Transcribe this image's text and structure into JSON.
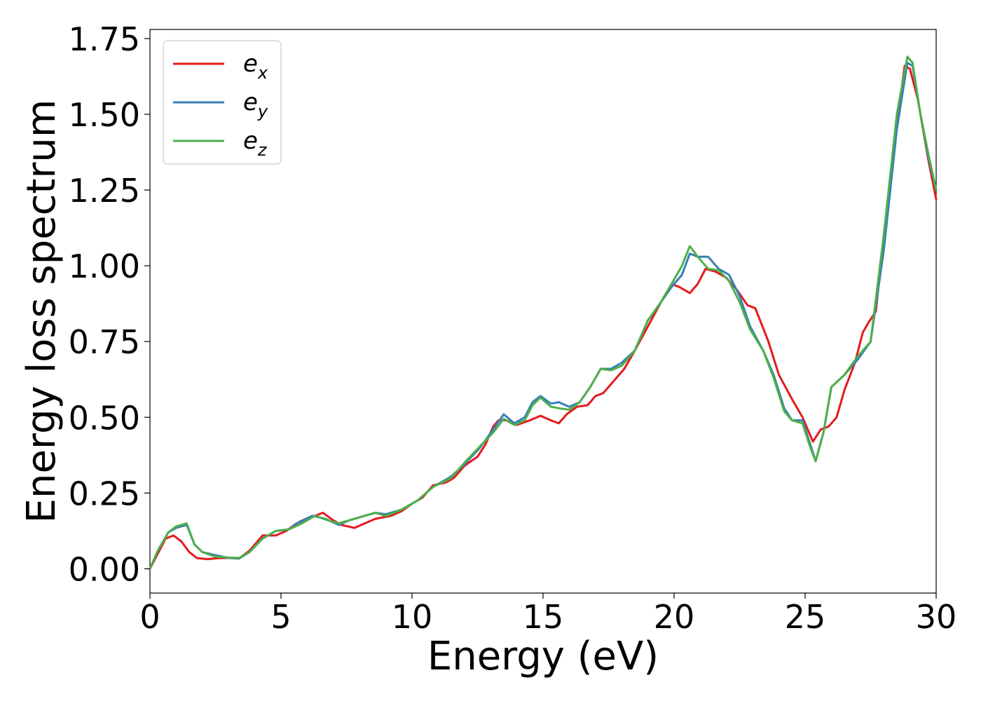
{
  "chart_data": {
    "type": "line",
    "title": "",
    "xlabel": "Energy (eV)",
    "ylabel": "Energy loss spectrum",
    "xlim": [
      0,
      30
    ],
    "ylim": [
      -0.08,
      1.78
    ],
    "x_ticks": [
      0,
      5,
      10,
      15,
      20,
      25,
      30
    ],
    "x_tick_labels": [
      "0",
      "5",
      "10",
      "15",
      "20",
      "25",
      "30"
    ],
    "y_ticks": [
      0.0,
      0.25,
      0.5,
      0.75,
      1.0,
      1.25,
      1.5,
      1.75
    ],
    "y_tick_labels": [
      "0.00",
      "0.25",
      "0.50",
      "0.75",
      "1.00",
      "1.25",
      "1.50",
      "1.75"
    ],
    "grid": false,
    "legend": {
      "position": "top-left",
      "entries": [
        {
          "base": "e",
          "sub": "x",
          "color": "#e41a1c"
        },
        {
          "base": "e",
          "sub": "y",
          "color": "#377eb8"
        },
        {
          "base": "e",
          "sub": "z",
          "color": "#4daf4a"
        }
      ]
    },
    "series": [
      {
        "name": "e_x",
        "color": "#e41a1c",
        "points": [
          [
            0,
            0.0
          ],
          [
            0.3,
            0.05
          ],
          [
            0.6,
            0.1
          ],
          [
            0.9,
            0.11
          ],
          [
            1.2,
            0.09
          ],
          [
            1.5,
            0.055
          ],
          [
            1.8,
            0.035
          ],
          [
            2.2,
            0.032
          ],
          [
            2.6,
            0.035
          ],
          [
            3.0,
            0.036
          ],
          [
            3.4,
            0.034
          ],
          [
            3.8,
            0.06
          ],
          [
            4.3,
            0.11
          ],
          [
            4.8,
            0.11
          ],
          [
            5.2,
            0.125
          ],
          [
            5.6,
            0.15
          ],
          [
            6.0,
            0.165
          ],
          [
            6.6,
            0.185
          ],
          [
            7.0,
            0.16
          ],
          [
            7.3,
            0.145
          ],
          [
            7.8,
            0.135
          ],
          [
            8.2,
            0.15
          ],
          [
            8.6,
            0.165
          ],
          [
            9.2,
            0.175
          ],
          [
            9.6,
            0.19
          ],
          [
            10.0,
            0.215
          ],
          [
            10.4,
            0.235
          ],
          [
            10.8,
            0.275
          ],
          [
            11.3,
            0.285
          ],
          [
            11.6,
            0.3
          ],
          [
            12.0,
            0.34
          ],
          [
            12.5,
            0.37
          ],
          [
            12.8,
            0.41
          ],
          [
            13.1,
            0.47
          ],
          [
            13.3,
            0.49
          ],
          [
            13.6,
            0.49
          ],
          [
            14.0,
            0.475
          ],
          [
            14.5,
            0.49
          ],
          [
            14.9,
            0.505
          ],
          [
            15.3,
            0.49
          ],
          [
            15.6,
            0.48
          ],
          [
            15.9,
            0.51
          ],
          [
            16.3,
            0.535
          ],
          [
            16.7,
            0.54
          ],
          [
            17.0,
            0.57
          ],
          [
            17.3,
            0.58
          ],
          [
            17.7,
            0.62
          ],
          [
            18.1,
            0.66
          ],
          [
            18.5,
            0.72
          ],
          [
            19.0,
            0.8
          ],
          [
            19.5,
            0.88
          ],
          [
            19.9,
            0.94
          ],
          [
            20.2,
            0.93
          ],
          [
            20.6,
            0.91
          ],
          [
            20.9,
            0.94
          ],
          [
            21.2,
            0.99
          ],
          [
            21.6,
            0.98
          ],
          [
            22.0,
            0.96
          ],
          [
            22.4,
            0.92
          ],
          [
            22.8,
            0.87
          ],
          [
            23.1,
            0.86
          ],
          [
            23.6,
            0.75
          ],
          [
            24.0,
            0.64
          ],
          [
            24.5,
            0.56
          ],
          [
            24.9,
            0.5
          ],
          [
            25.3,
            0.42
          ],
          [
            25.6,
            0.46
          ],
          [
            25.9,
            0.47
          ],
          [
            26.2,
            0.5
          ],
          [
            26.5,
            0.59
          ],
          [
            26.9,
            0.68
          ],
          [
            27.2,
            0.78
          ],
          [
            27.4,
            0.81
          ],
          [
            27.7,
            0.85
          ],
          [
            28.0,
            1.1
          ],
          [
            28.4,
            1.4
          ],
          [
            28.8,
            1.66
          ],
          [
            29.0,
            1.65
          ],
          [
            29.3,
            1.55
          ],
          [
            29.7,
            1.35
          ],
          [
            30.0,
            1.22
          ]
        ]
      },
      {
        "name": "e_y",
        "color": "#377eb8",
        "points": [
          [
            0,
            0.0
          ],
          [
            0.3,
            0.06
          ],
          [
            0.7,
            0.12
          ],
          [
            1.0,
            0.135
          ],
          [
            1.4,
            0.145
          ],
          [
            1.7,
            0.08
          ],
          [
            2.0,
            0.055
          ],
          [
            2.5,
            0.045
          ],
          [
            3.0,
            0.036
          ],
          [
            3.4,
            0.034
          ],
          [
            3.8,
            0.055
          ],
          [
            4.3,
            0.1
          ],
          [
            4.8,
            0.125
          ],
          [
            5.3,
            0.13
          ],
          [
            5.7,
            0.155
          ],
          [
            6.2,
            0.175
          ],
          [
            6.7,
            0.165
          ],
          [
            7.2,
            0.145
          ],
          [
            7.6,
            0.16
          ],
          [
            8.0,
            0.17
          ],
          [
            8.6,
            0.185
          ],
          [
            9.0,
            0.18
          ],
          [
            9.6,
            0.195
          ],
          [
            10.2,
            0.225
          ],
          [
            10.8,
            0.27
          ],
          [
            11.5,
            0.305
          ],
          [
            12.0,
            0.345
          ],
          [
            12.6,
            0.4
          ],
          [
            13.1,
            0.46
          ],
          [
            13.5,
            0.51
          ],
          [
            13.9,
            0.48
          ],
          [
            14.3,
            0.5
          ],
          [
            14.6,
            0.55
          ],
          [
            14.9,
            0.57
          ],
          [
            15.3,
            0.545
          ],
          [
            15.6,
            0.55
          ],
          [
            16.0,
            0.535
          ],
          [
            16.4,
            0.55
          ],
          [
            16.8,
            0.6
          ],
          [
            17.2,
            0.66
          ],
          [
            17.6,
            0.66
          ],
          [
            18.0,
            0.68
          ],
          [
            18.5,
            0.72
          ],
          [
            19.0,
            0.82
          ],
          [
            19.5,
            0.88
          ],
          [
            19.9,
            0.93
          ],
          [
            20.3,
            0.97
          ],
          [
            20.6,
            1.04
          ],
          [
            20.9,
            1.03
          ],
          [
            21.3,
            1.03
          ],
          [
            21.7,
            0.99
          ],
          [
            22.1,
            0.97
          ],
          [
            22.5,
            0.9
          ],
          [
            22.9,
            0.8
          ],
          [
            23.4,
            0.72
          ],
          [
            23.8,
            0.64
          ],
          [
            24.2,
            0.53
          ],
          [
            24.5,
            0.49
          ],
          [
            24.9,
            0.49
          ],
          [
            25.2,
            0.41
          ],
          [
            25.4,
            0.355
          ],
          [
            25.7,
            0.45
          ],
          [
            26.0,
            0.6
          ],
          [
            26.5,
            0.64
          ],
          [
            27.0,
            0.69
          ],
          [
            27.5,
            0.75
          ],
          [
            28.0,
            1.05
          ],
          [
            28.5,
            1.45
          ],
          [
            28.9,
            1.67
          ],
          [
            29.1,
            1.66
          ],
          [
            29.4,
            1.5
          ],
          [
            29.7,
            1.36
          ],
          [
            30.0,
            1.25
          ]
        ]
      },
      {
        "name": "e_z",
        "color": "#4daf4a",
        "points": [
          [
            0,
            0.0
          ],
          [
            0.3,
            0.06
          ],
          [
            0.7,
            0.12
          ],
          [
            1.0,
            0.14
          ],
          [
            1.4,
            0.15
          ],
          [
            1.7,
            0.08
          ],
          [
            2.0,
            0.055
          ],
          [
            2.5,
            0.04
          ],
          [
            3.0,
            0.037
          ],
          [
            3.4,
            0.036
          ],
          [
            3.8,
            0.055
          ],
          [
            4.3,
            0.1
          ],
          [
            4.8,
            0.125
          ],
          [
            5.3,
            0.13
          ],
          [
            5.8,
            0.15
          ],
          [
            6.3,
            0.175
          ],
          [
            6.8,
            0.16
          ],
          [
            7.2,
            0.15
          ],
          [
            7.6,
            0.16
          ],
          [
            8.0,
            0.17
          ],
          [
            8.6,
            0.185
          ],
          [
            9.0,
            0.175
          ],
          [
            9.6,
            0.195
          ],
          [
            10.2,
            0.225
          ],
          [
            10.8,
            0.27
          ],
          [
            11.5,
            0.3
          ],
          [
            12.0,
            0.35
          ],
          [
            12.6,
            0.405
          ],
          [
            13.1,
            0.45
          ],
          [
            13.5,
            0.495
          ],
          [
            13.9,
            0.475
          ],
          [
            14.3,
            0.49
          ],
          [
            14.6,
            0.54
          ],
          [
            14.9,
            0.565
          ],
          [
            15.3,
            0.535
          ],
          [
            15.6,
            0.53
          ],
          [
            16.0,
            0.525
          ],
          [
            16.4,
            0.55
          ],
          [
            16.8,
            0.6
          ],
          [
            17.2,
            0.66
          ],
          [
            17.6,
            0.655
          ],
          [
            18.0,
            0.67
          ],
          [
            18.5,
            0.72
          ],
          [
            19.0,
            0.82
          ],
          [
            19.5,
            0.88
          ],
          [
            19.9,
            0.94
          ],
          [
            20.3,
            1.0
          ],
          [
            20.6,
            1.065
          ],
          [
            20.9,
            1.03
          ],
          [
            21.3,
            0.99
          ],
          [
            21.7,
            0.985
          ],
          [
            22.1,
            0.95
          ],
          [
            22.5,
            0.88
          ],
          [
            22.9,
            0.79
          ],
          [
            23.4,
            0.72
          ],
          [
            23.8,
            0.63
          ],
          [
            24.2,
            0.52
          ],
          [
            24.5,
            0.49
          ],
          [
            24.9,
            0.48
          ],
          [
            25.2,
            0.4
          ],
          [
            25.4,
            0.355
          ],
          [
            25.7,
            0.45
          ],
          [
            26.0,
            0.6
          ],
          [
            26.5,
            0.64
          ],
          [
            27.0,
            0.7
          ],
          [
            27.5,
            0.75
          ],
          [
            28.0,
            1.1
          ],
          [
            28.5,
            1.5
          ],
          [
            28.9,
            1.69
          ],
          [
            29.1,
            1.67
          ],
          [
            29.4,
            1.5
          ],
          [
            29.7,
            1.37
          ],
          [
            30.0,
            1.25
          ]
        ]
      }
    ]
  }
}
